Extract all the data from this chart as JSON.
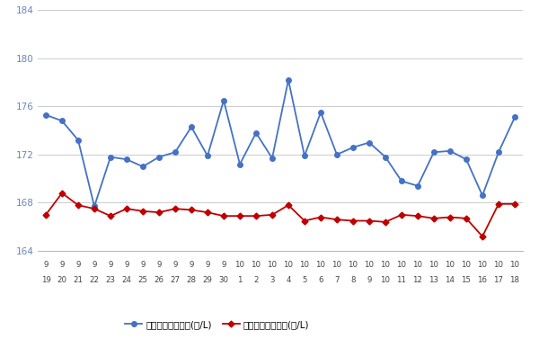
{
  "x_labels_line1": [
    "9",
    "9",
    "9",
    "9",
    "9",
    "9",
    "9",
    "9",
    "9",
    "9",
    "9",
    "9",
    "10",
    "10",
    "10",
    "10",
    "10",
    "10",
    "10",
    "10",
    "10",
    "10",
    "10",
    "10",
    "10",
    "10",
    "10",
    "10",
    "10",
    "10"
  ],
  "x_labels_line2": [
    "19",
    "20",
    "21",
    "22",
    "23",
    "24",
    "25",
    "26",
    "27",
    "28",
    "29",
    "30",
    "1",
    "2",
    "3",
    "4",
    "5",
    "6",
    "7",
    "8",
    "9",
    "10",
    "11",
    "12",
    "13",
    "14",
    "15",
    "16",
    "17",
    "18"
  ],
  "blue_values": [
    175.3,
    174.8,
    173.2,
    167.7,
    171.8,
    171.6,
    171.0,
    171.8,
    172.2,
    174.3,
    171.9,
    176.5,
    171.2,
    173.8,
    171.7,
    178.2,
    171.9,
    175.5,
    172.0,
    172.6,
    173.0,
    171.8,
    169.8,
    169.4,
    172.2,
    172.3,
    171.6,
    168.6,
    172.2,
    175.1
  ],
  "red_values": [
    167.0,
    168.8,
    167.8,
    167.5,
    166.9,
    167.5,
    167.3,
    167.2,
    167.5,
    167.4,
    167.2,
    166.9,
    166.9,
    166.9,
    167.0,
    167.8,
    166.5,
    166.8,
    166.6,
    166.5,
    166.5,
    166.4,
    167.0,
    166.9,
    166.7,
    166.8,
    166.7,
    165.2,
    167.9,
    167.9
  ],
  "blue_color": "#4472C4",
  "red_color": "#C00000",
  "ylim_min": 164,
  "ylim_max": 184,
  "yticks": [
    164,
    168,
    172,
    176,
    180,
    184
  ],
  "legend_blue": "ハイオク看板価格(円/L)",
  "legend_red": "ハイオク実売価格(円/L)",
  "bg_color": "#ffffff",
  "grid_color": "#cccccc",
  "marker_size": 4,
  "line_width": 1.3
}
